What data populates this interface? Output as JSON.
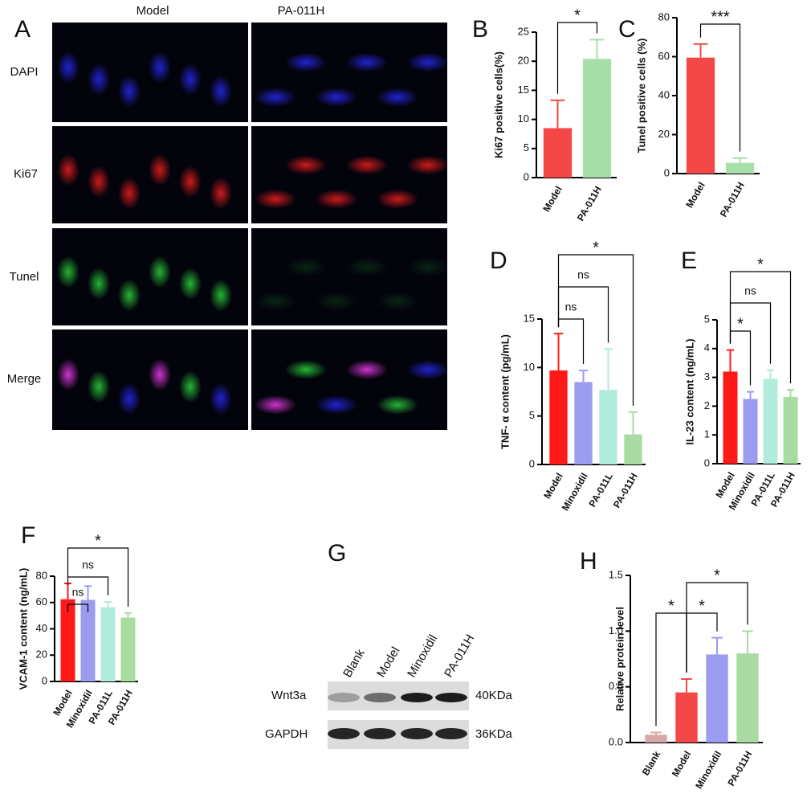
{
  "figure_a": {
    "label": "A",
    "columns": [
      "Model",
      "PA-011H"
    ],
    "rows": [
      "DAPI",
      "Ki67",
      "Tunel",
      "Merge"
    ]
  },
  "chart_data": [
    {
      "type": "bar",
      "panel": "B",
      "ylabel": "Ki67 positive cells(%)",
      "categories": [
        "Model",
        "PA-011H"
      ],
      "values": [
        8.5,
        20.4
      ],
      "errors": [
        4.8,
        3.3
      ],
      "colors": [
        "#f44848",
        "#a8dea8"
      ],
      "ylim": [
        0,
        25
      ],
      "yticks": [
        0,
        5,
        10,
        15,
        20,
        25
      ],
      "significance": [
        {
          "from": "Model",
          "to": "PA-011H",
          "label": "*"
        }
      ]
    },
    {
      "type": "bar",
      "panel": "C",
      "ylabel": "Tunel positive cells (%)",
      "categories": [
        "Model",
        "PA-011H"
      ],
      "values": [
        59.5,
        5.5
      ],
      "errors": [
        7,
        2.5
      ],
      "colors": [
        "#f44848",
        "#a8dea8"
      ],
      "ylim": [
        0,
        80
      ],
      "yticks": [
        0,
        20,
        40,
        60,
        80
      ],
      "significance": [
        {
          "from": "Model",
          "to": "PA-011H",
          "label": "***"
        }
      ]
    },
    {
      "type": "bar",
      "panel": "D",
      "ylabel": "TNF- α content (pg/mL)",
      "categories": [
        "Model",
        "Minoxidil",
        "PA-011L",
        "PA-011H"
      ],
      "values": [
        9.7,
        8.5,
        7.7,
        3.1
      ],
      "errors": [
        3.8,
        1.2,
        4.2,
        2.3
      ],
      "colors": [
        "#ff1a1a",
        "#9b9bf0",
        "#b2ecdc",
        "#a8dca0"
      ],
      "ylim": [
        0,
        15
      ],
      "yticks": [
        0,
        5,
        10,
        15
      ],
      "significance": [
        {
          "from": "Model",
          "to": "Minoxidil",
          "label": "ns"
        },
        {
          "from": "Model",
          "to": "PA-011L",
          "label": "ns"
        },
        {
          "from": "Model",
          "to": "PA-011H",
          "label": "*"
        }
      ]
    },
    {
      "type": "bar",
      "panel": "E",
      "ylabel": "IL-23 content (ng/mL)",
      "categories": [
        "Model",
        "Minoxidil",
        "PA-011L",
        "PA-011H"
      ],
      "values": [
        3.2,
        2.25,
        2.95,
        2.32
      ],
      "errors": [
        0.75,
        0.25,
        0.3,
        0.25
      ],
      "colors": [
        "#ff1a1a",
        "#9b9bf0",
        "#b2ecdc",
        "#a8dca0"
      ],
      "ylim": [
        0,
        5
      ],
      "yticks": [
        0,
        1,
        2,
        3,
        4,
        5
      ],
      "significance": [
        {
          "from": "Model",
          "to": "Minoxidil",
          "label": "*"
        },
        {
          "from": "Model",
          "to": "PA-011L",
          "label": "ns"
        },
        {
          "from": "Model",
          "to": "PA-011H",
          "label": "*"
        }
      ]
    },
    {
      "type": "bar",
      "panel": "F",
      "ylabel": "VCAM-1 content (ng/mL)",
      "categories": [
        "Model",
        "Minoxidil",
        "PA-011L",
        "PA-011H"
      ],
      "values": [
        62.5,
        62,
        56.5,
        48.5
      ],
      "errors": [
        12,
        10.5,
        4,
        3.5
      ],
      "colors": [
        "#ff1a1a",
        "#9b9bf0",
        "#b2ecdc",
        "#a8dca0"
      ],
      "ylim": [
        0,
        80
      ],
      "yticks": [
        0,
        20,
        40,
        60,
        80
      ],
      "significance": [
        {
          "from": "Model",
          "to": "Minoxidil",
          "label": "ns"
        },
        {
          "from": "Model",
          "to": "PA-011L",
          "label": "ns"
        },
        {
          "from": "Model",
          "to": "PA-011H",
          "label": "*"
        }
      ]
    },
    {
      "type": "bar",
      "panel": "H",
      "ylabel": "Relative protein level",
      "categories": [
        "Blank",
        "Model",
        "Minoxidil",
        "PA-011H"
      ],
      "values": [
        0.07,
        0.45,
        0.79,
        0.8
      ],
      "errors": [
        0.02,
        0.12,
        0.15,
        0.2
      ],
      "colors": [
        "#d8a8a8",
        "#f44848",
        "#9b9bf0",
        "#a8dca0"
      ],
      "ylim": [
        0,
        1.5
      ],
      "yticks": [
        {
          "value": 0,
          "label": "0.0"
        },
        0.5,
        {
          "value": 1,
          "label": "1.0"
        },
        1.5
      ],
      "significance": [
        {
          "from": "Blank",
          "to": "Model",
          "label": "*"
        },
        {
          "from": "Model",
          "to": "Minoxidil",
          "label": "*"
        },
        {
          "from": "Model",
          "to": "PA-011H",
          "label": "*"
        }
      ]
    }
  ],
  "figure_g": {
    "label": "G",
    "lanes": [
      "Blank",
      "Model",
      "Minoxidil",
      "PA-011H"
    ],
    "bands": [
      {
        "name": "Wnt3a",
        "size": "40KDa"
      },
      {
        "name": "GAPDH",
        "size": "36KDa"
      }
    ]
  }
}
